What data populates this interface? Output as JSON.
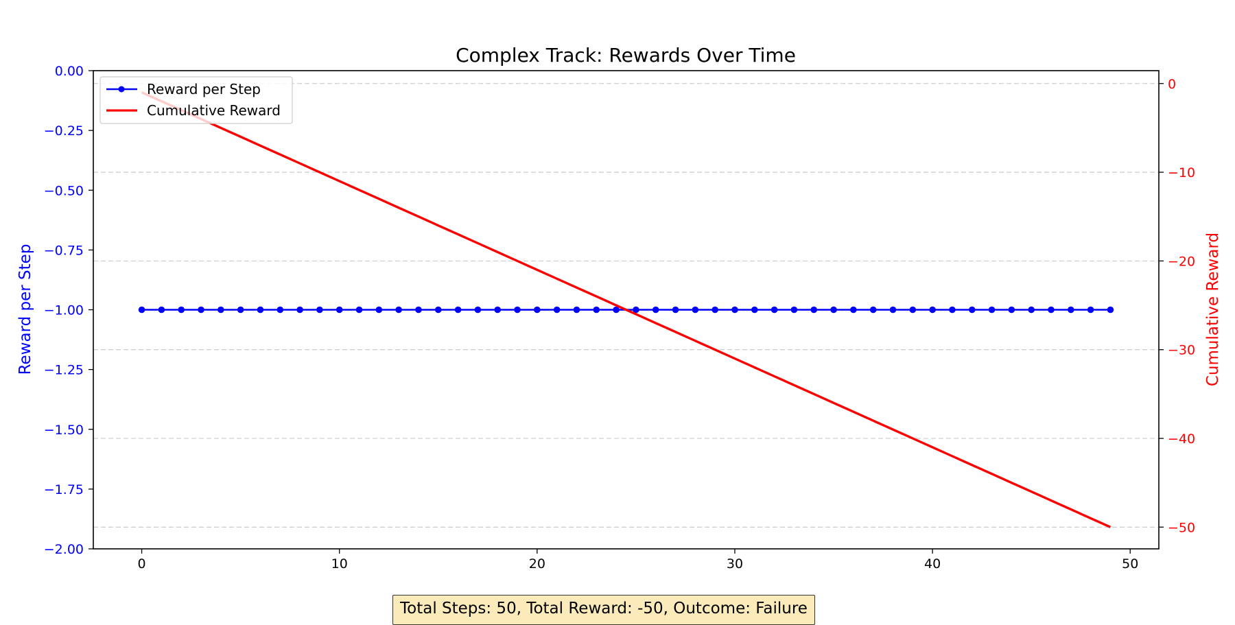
{
  "chart_data": {
    "type": "line",
    "title": "Complex Track: Rewards Over Time",
    "x": [
      0,
      1,
      2,
      3,
      4,
      5,
      6,
      7,
      8,
      9,
      10,
      11,
      12,
      13,
      14,
      15,
      16,
      17,
      18,
      19,
      20,
      21,
      22,
      23,
      24,
      25,
      26,
      27,
      28,
      29,
      30,
      31,
      32,
      33,
      34,
      35,
      36,
      37,
      38,
      39,
      40,
      41,
      42,
      43,
      44,
      45,
      46,
      47,
      48,
      49
    ],
    "xlim": [
      -2.45,
      51.45
    ],
    "xticks": [
      0,
      10,
      20,
      30,
      40,
      50
    ],
    "xtick_labels": [
      "0",
      "10",
      "20",
      "30",
      "40",
      "50"
    ],
    "left_axis": {
      "label": "Reward per Step",
      "color": "#0000ff",
      "ylim": [
        -2.0,
        0.0
      ],
      "ticks": [
        0.0,
        -0.25,
        -0.5,
        -0.75,
        -1.0,
        -1.25,
        -1.5,
        -1.75,
        -2.0
      ],
      "tick_labels": [
        "0.00",
        "−0.25",
        "−0.50",
        "−0.75",
        "−1.00",
        "−1.25",
        "−1.50",
        "−1.75",
        "−2.00"
      ]
    },
    "right_axis": {
      "label": "Cumulative Reward",
      "color": "#ff0000",
      "ylim": [
        -52.45,
        1.45
      ],
      "ticks": [
        0,
        -10,
        -20,
        -30,
        -40,
        -50
      ],
      "tick_labels": [
        "0",
        "−10",
        "−20",
        "−30",
        "−40",
        "−50"
      ],
      "grid": true
    },
    "series": [
      {
        "name": "Reward per Step",
        "axis": "left",
        "color": "#0000ff",
        "marker": "circle",
        "values": [
          -1,
          -1,
          -1,
          -1,
          -1,
          -1,
          -1,
          -1,
          -1,
          -1,
          -1,
          -1,
          -1,
          -1,
          -1,
          -1,
          -1,
          -1,
          -1,
          -1,
          -1,
          -1,
          -1,
          -1,
          -1,
          -1,
          -1,
          -1,
          -1,
          -1,
          -1,
          -1,
          -1,
          -1,
          -1,
          -1,
          -1,
          -1,
          -1,
          -1,
          -1,
          -1,
          -1,
          -1,
          -1,
          -1,
          -1,
          -1,
          -1,
          -1
        ]
      },
      {
        "name": "Cumulative Reward",
        "axis": "right",
        "color": "#ff0000",
        "marker": "none",
        "values": [
          -1,
          -2,
          -3,
          -4,
          -5,
          -6,
          -7,
          -8,
          -9,
          -10,
          -11,
          -12,
          -13,
          -14,
          -15,
          -16,
          -17,
          -18,
          -19,
          -20,
          -21,
          -22,
          -23,
          -24,
          -25,
          -26,
          -27,
          -28,
          -29,
          -30,
          -31,
          -32,
          -33,
          -34,
          -35,
          -36,
          -37,
          -38,
          -39,
          -40,
          -41,
          -42,
          -43,
          -44,
          -45,
          -46,
          -47,
          -48,
          -49,
          -50
        ]
      }
    ],
    "legend": {
      "placement": "upper-left"
    },
    "annotation": "Total Steps: 50, Total Reward: -50, Outcome: Failure"
  }
}
